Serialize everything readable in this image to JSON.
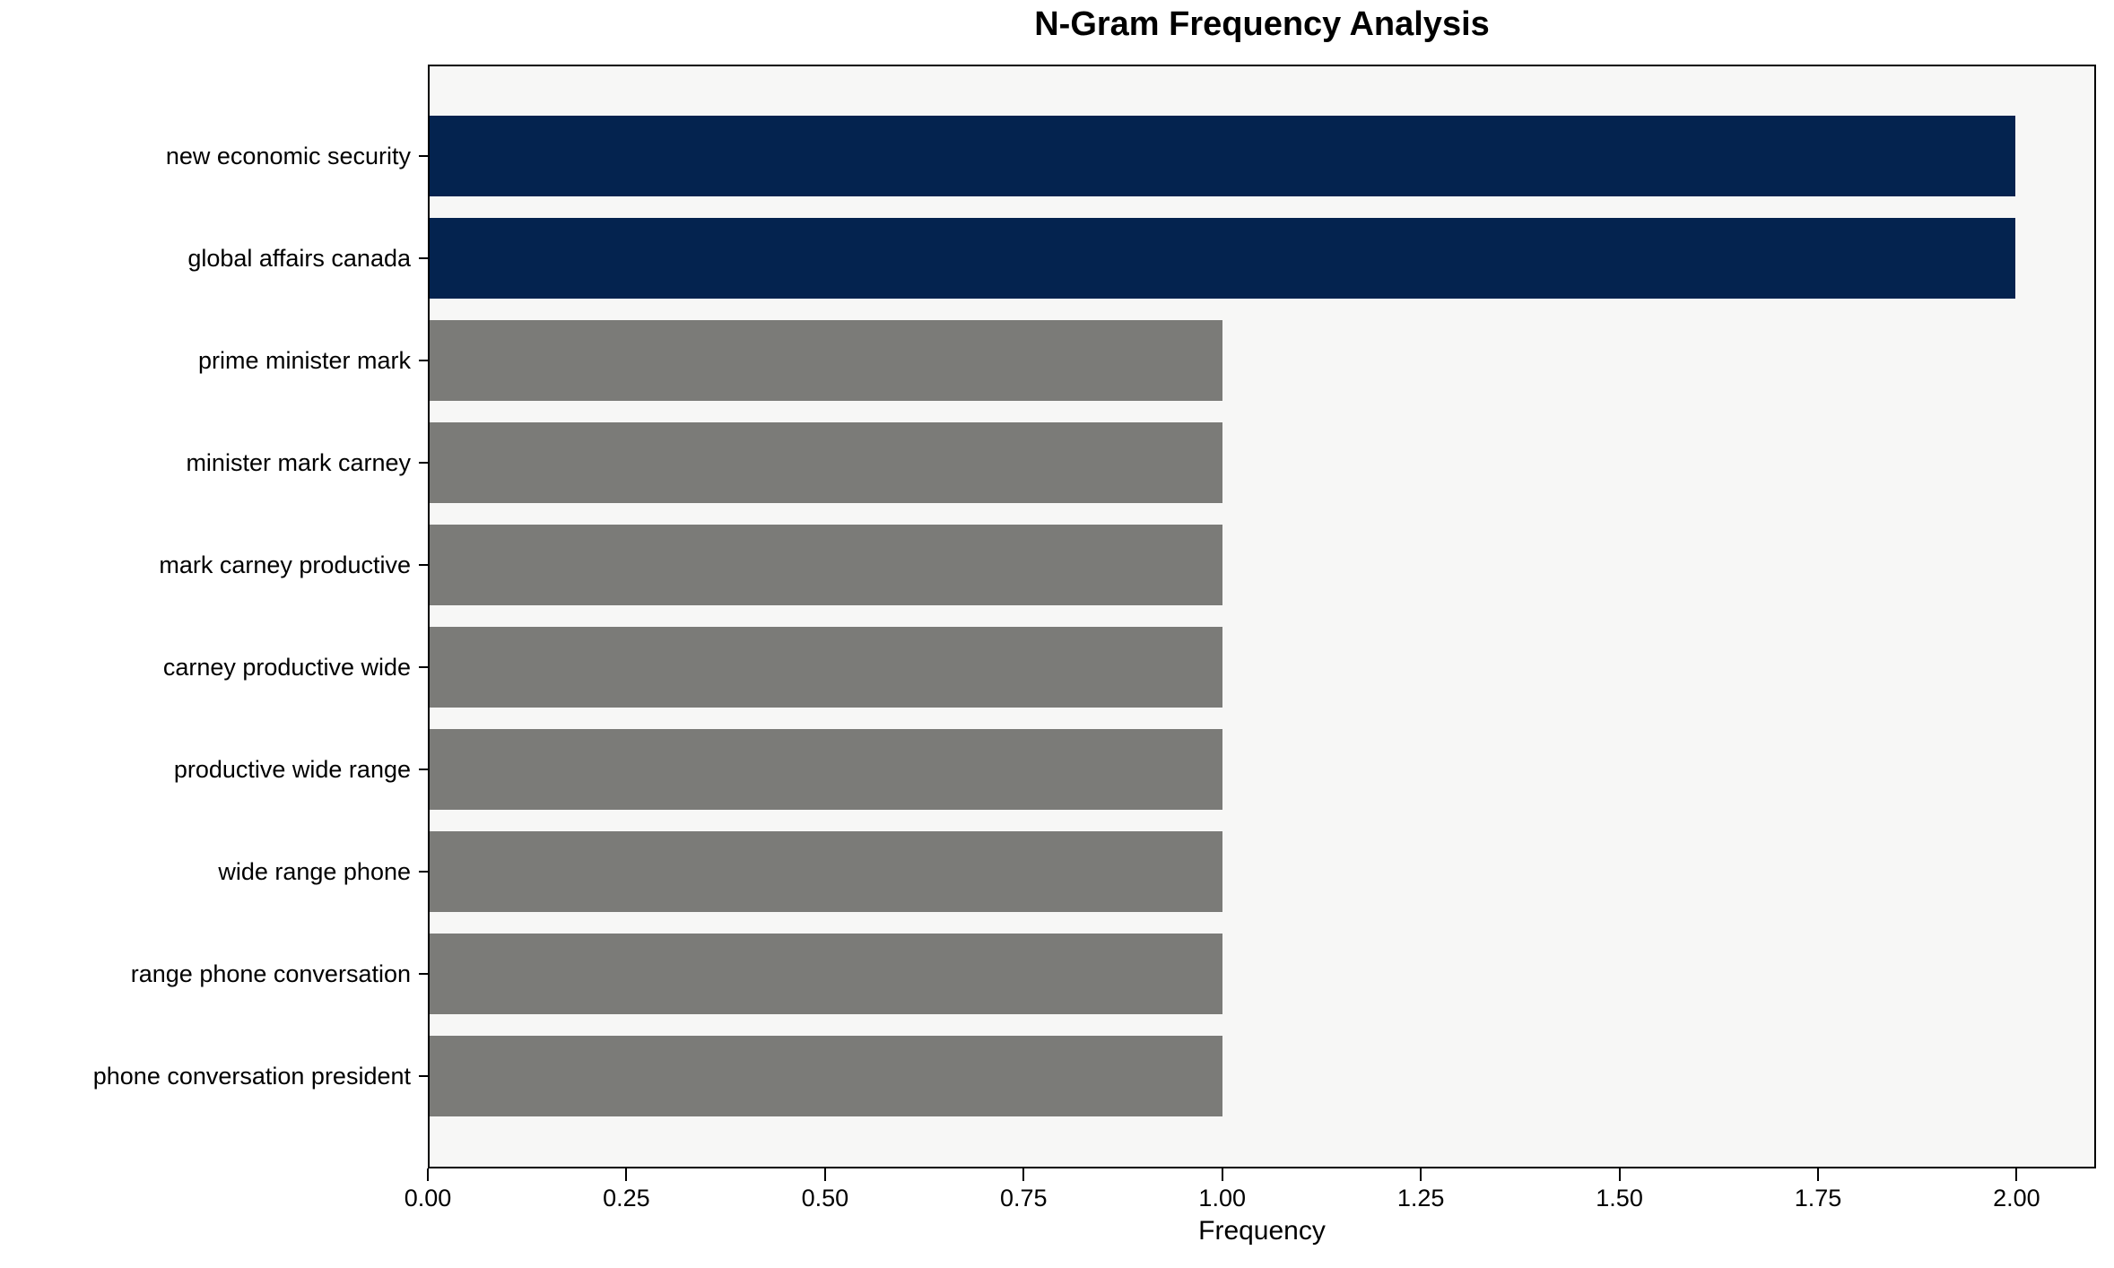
{
  "chart_data": {
    "type": "bar",
    "orientation": "horizontal",
    "title": "N-Gram Frequency Analysis",
    "xlabel": "Frequency",
    "ylabel": "",
    "categories": [
      "new economic security",
      "global affairs canada",
      "prime minister mark",
      "minister mark carney",
      "mark carney productive",
      "carney productive wide",
      "productive wide range",
      "wide range phone",
      "range phone conversation",
      "phone conversation president"
    ],
    "values": [
      2,
      2,
      1,
      1,
      1,
      1,
      1,
      1,
      1,
      1
    ],
    "bar_colors": [
      "#04234f",
      "#04234f",
      "#7b7b78",
      "#7b7b78",
      "#7b7b78",
      "#7b7b78",
      "#7b7b78",
      "#7b7b78",
      "#7b7b78",
      "#7b7b78"
    ],
    "x_ticks": [
      {
        "value": 0.0,
        "label": "0.00"
      },
      {
        "value": 0.25,
        "label": "0.25"
      },
      {
        "value": 0.5,
        "label": "0.50"
      },
      {
        "value": 0.75,
        "label": "0.75"
      },
      {
        "value": 1.0,
        "label": "1.00"
      },
      {
        "value": 1.25,
        "label": "1.25"
      },
      {
        "value": 1.5,
        "label": "1.50"
      },
      {
        "value": 1.75,
        "label": "1.75"
      },
      {
        "value": 2.0,
        "label": "2.00"
      }
    ],
    "xlim": [
      0,
      2.1
    ],
    "grid": false,
    "legend": null,
    "colors": {
      "highlight_bar": "#04234f",
      "default_bar": "#7b7b78",
      "plot_background": "#f7f7f6",
      "figure_background": "#ffffff",
      "axis_line": "#000000",
      "text": "#000000"
    }
  }
}
